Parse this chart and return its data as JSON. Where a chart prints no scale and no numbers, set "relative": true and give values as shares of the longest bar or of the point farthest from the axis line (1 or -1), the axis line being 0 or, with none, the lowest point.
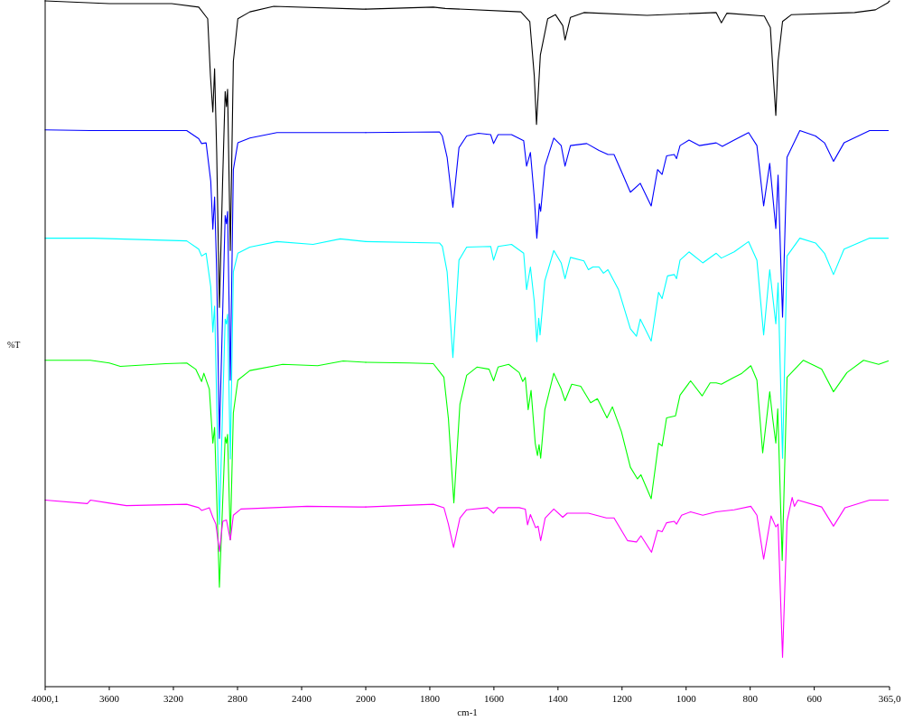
{
  "chart_data": [
    {
      "type": "line",
      "relative": true,
      "ylabel": "%T",
      "tick_labels": "x",
      "xlim": [
        4000.1,
        2000
      ],
      "xticks": [
        {
          "value": 4000.1,
          "label": "4000,1"
        },
        3600,
        3200,
        2800,
        2400,
        2000
      ],
      "series": [
        {
          "color": "#000000",
          "x": [
            4000,
            3600,
            3211,
            3042,
            2986,
            2969,
            2954,
            2943,
            2930,
            2913,
            2893,
            2877,
            2869,
            2862,
            2845,
            2826,
            2798,
            2723,
            2574,
            2019,
            2000
          ],
          "values": [
            1.0,
            0.996,
            0.996,
            0.991,
            0.974,
            0.891,
            0.838,
            0.901,
            0.78,
            0.553,
            0.737,
            0.868,
            0.846,
            0.871,
            0.636,
            0.912,
            0.974,
            0.984,
            0.992,
            0.988,
            0.988
          ]
        },
        {
          "color": "#0000ff",
          "x": [
            4000,
            3718,
            3117,
            3042,
            3024,
            2996,
            2967,
            2954,
            2943,
            2930,
            2913,
            2877,
            2869,
            2862,
            2845,
            2826,
            2798,
            2723,
            2554,
            2000
          ],
          "values": [
            0.812,
            0.811,
            0.811,
            0.799,
            0.792,
            0.793,
            0.737,
            0.667,
            0.714,
            0.605,
            0.362,
            0.687,
            0.675,
            0.693,
            0.447,
            0.754,
            0.793,
            0.8,
            0.808,
            0.808
          ]
        },
        {
          "color": "#00ffff",
          "x": [
            4000,
            3700,
            3117,
            3042,
            3024,
            2996,
            2967,
            2954,
            2943,
            2913,
            2877,
            2869,
            2862,
            2845,
            2826,
            2798,
            2723,
            2554,
            2329,
            2159,
            2000
          ],
          "values": [
            0.654,
            0.654,
            0.65,
            0.638,
            0.628,
            0.632,
            0.583,
            0.517,
            0.555,
            0.237,
            0.536,
            0.529,
            0.543,
            0.332,
            0.605,
            0.632,
            0.641,
            0.649,
            0.645,
            0.653,
            0.649
          ]
        },
        {
          "color": "#00ff00",
          "x": [
            4000,
            3718,
            3600,
            3531,
            3249,
            3117,
            3061,
            3024,
            3010,
            2976,
            2954,
            2943,
            2913,
            2877,
            2869,
            2862,
            2845,
            2826,
            2798,
            2723,
            2518,
            2300,
            2141,
            2000
          ],
          "values": [
            0.476,
            0.476,
            0.472,
            0.467,
            0.471,
            0.472,
            0.463,
            0.445,
            0.457,
            0.434,
            0.355,
            0.378,
            0.145,
            0.364,
            0.355,
            0.368,
            0.214,
            0.399,
            0.447,
            0.461,
            0.47,
            0.468,
            0.475,
            0.473
          ]
        },
        {
          "color": "#ff00ff",
          "x": [
            4000,
            3737,
            3718,
            3606,
            3493,
            3117,
            3042,
            3024,
            2976,
            2954,
            2935,
            2913,
            2892,
            2869,
            2845,
            2826,
            2779,
            2366,
            2047,
            2000
          ],
          "values": [
            0.272,
            0.267,
            0.272,
            0.268,
            0.264,
            0.266,
            0.261,
            0.257,
            0.261,
            0.247,
            0.237,
            0.197,
            0.241,
            0.243,
            0.214,
            0.25,
            0.259,
            0.263,
            0.262,
            0.262
          ]
        }
      ]
    },
    {
      "type": "line",
      "relative": true,
      "xlabel": "cm-1",
      "tick_labels": "x",
      "xlim": [
        2000,
        365.0
      ],
      "xticks": [
        1800,
        1600,
        1400,
        1200,
        1000,
        800,
        600,
        {
          "value": 365.0,
          "label": "365,0"
        }
      ],
      "series": [
        {
          "color": "#000000",
          "x": [
            2000,
            1789,
            1752,
            1516,
            1488,
            1474,
            1467,
            1455,
            1432,
            1408,
            1385,
            1378,
            1361,
            1319,
            1122,
            906,
            890,
            873,
            756,
            737,
            728,
            720,
            713,
            699,
            671,
            474,
            409,
            371,
            365
          ],
          "values": [
            0.988,
            0.991,
            0.989,
            0.984,
            0.97,
            0.891,
            0.82,
            0.921,
            0.974,
            0.98,
            0.964,
            0.943,
            0.976,
            0.983,
            0.979,
            0.983,
            0.968,
            0.982,
            0.978,
            0.961,
            0.891,
            0.833,
            0.912,
            0.97,
            0.98,
            0.983,
            0.987,
            0.997,
            1.0
          ]
        },
        {
          "color": "#0000ff",
          "x": [
            2000,
            1770,
            1761,
            1746,
            1728,
            1709,
            1685,
            1648,
            1610,
            1601,
            1587,
            1545,
            1507,
            1498,
            1486,
            1474,
            1466,
            1458,
            1454,
            1441,
            1413,
            1390,
            1378,
            1361,
            1310,
            1272,
            1244,
            1225,
            1197,
            1174,
            1143,
            1109,
            1089,
            1075,
            1061,
            1037,
            1030,
            1019,
            991,
            958,
            906,
            887,
            850,
            805,
            779,
            758,
            739,
            720,
            713,
            699,
            685,
            645,
            596,
            568,
            540,
            507,
            427,
            369
          ],
          "values": [
            0.808,
            0.809,
            0.803,
            0.772,
            0.699,
            0.786,
            0.803,
            0.807,
            0.805,
            0.792,
            0.805,
            0.805,
            0.796,
            0.759,
            0.779,
            0.714,
            0.654,
            0.704,
            0.693,
            0.759,
            0.8,
            0.789,
            0.759,
            0.789,
            0.792,
            0.782,
            0.776,
            0.776,
            0.746,
            0.721,
            0.734,
            0.701,
            0.754,
            0.747,
            0.774,
            0.776,
            0.77,
            0.789,
            0.797,
            0.789,
            0.793,
            0.788,
            0.797,
            0.808,
            0.789,
            0.701,
            0.763,
            0.668,
            0.746,
            0.539,
            0.772,
            0.811,
            0.803,
            0.793,
            0.766,
            0.793,
            0.811,
            0.811
          ]
        },
        {
          "color": "#00ffff",
          "x": [
            2000,
            1770,
            1761,
            1746,
            1728,
            1709,
            1685,
            1610,
            1601,
            1587,
            1545,
            1507,
            1498,
            1486,
            1474,
            1466,
            1460,
            1456,
            1441,
            1413,
            1390,
            1378,
            1361,
            1319,
            1305,
            1291,
            1272,
            1258,
            1244,
            1211,
            1174,
            1155,
            1143,
            1109,
            1086,
            1075,
            1058,
            1037,
            1030,
            1019,
            991,
            948,
            906,
            890,
            850,
            805,
            779,
            758,
            739,
            720,
            713,
            699,
            685,
            645,
            596,
            568,
            540,
            507,
            427,
            369
          ],
          "values": [
            0.649,
            0.647,
            0.642,
            0.605,
            0.48,
            0.622,
            0.641,
            0.642,
            0.622,
            0.642,
            0.645,
            0.632,
            0.579,
            0.612,
            0.562,
            0.503,
            0.537,
            0.513,
            0.592,
            0.636,
            0.618,
            0.595,
            0.626,
            0.621,
            0.608,
            0.612,
            0.612,
            0.603,
            0.608,
            0.579,
            0.522,
            0.511,
            0.536,
            0.504,
            0.575,
            0.566,
            0.599,
            0.601,
            0.595,
            0.622,
            0.634,
            0.618,
            0.632,
            0.625,
            0.634,
            0.649,
            0.622,
            0.513,
            0.608,
            0.529,
            0.589,
            0.333,
            0.628,
            0.654,
            0.647,
            0.632,
            0.601,
            0.638,
            0.654,
            0.654
          ]
        },
        {
          "color": "#00ff00",
          "x": [
            2000,
            1864,
            1789,
            1756,
            1742,
            1725,
            1706,
            1685,
            1653,
            1615,
            1601,
            1587,
            1554,
            1521,
            1510,
            1502,
            1493,
            1484,
            1471,
            1464,
            1459,
            1454,
            1441,
            1413,
            1390,
            1378,
            1357,
            1329,
            1298,
            1277,
            1247,
            1230,
            1202,
            1174,
            1152,
            1141,
            1109,
            1086,
            1075,
            1061,
            1033,
            1019,
            986,
            950,
            925,
            906,
            890,
            855,
            826,
            798,
            779,
            761,
            739,
            730,
            720,
            714,
            700,
            685,
            634,
            577,
            540,
            498,
            446,
            399,
            369
          ],
          "values": [
            0.473,
            0.472,
            0.471,
            0.451,
            0.391,
            0.268,
            0.412,
            0.454,
            0.466,
            0.463,
            0.446,
            0.466,
            0.47,
            0.458,
            0.445,
            0.451,
            0.404,
            0.432,
            0.355,
            0.337,
            0.353,
            0.333,
            0.404,
            0.457,
            0.434,
            0.417,
            0.441,
            0.438,
            0.414,
            0.42,
            0.392,
            0.408,
            0.372,
            0.32,
            0.303,
            0.309,
            0.274,
            0.355,
            0.351,
            0.392,
            0.395,
            0.425,
            0.446,
            0.424,
            0.443,
            0.443,
            0.441,
            0.45,
            0.457,
            0.468,
            0.447,
            0.341,
            0.43,
            0.392,
            0.355,
            0.405,
            0.184,
            0.451,
            0.476,
            0.463,
            0.43,
            0.458,
            0.476,
            0.47,
            0.475
          ]
        },
        {
          "color": "#ff00ff",
          "x": [
            2000,
            1789,
            1756,
            1742,
            1726,
            1706,
            1685,
            1620,
            1601,
            1587,
            1521,
            1502,
            1495,
            1486,
            1470,
            1462,
            1454,
            1440,
            1413,
            1385,
            1371,
            1305,
            1249,
            1225,
            1183,
            1155,
            1141,
            1108,
            1089,
            1075,
            1061,
            1037,
            1030,
            1014,
            986,
            948,
            906,
            850,
            798,
            779,
            758,
            735,
            720,
            713,
            699,
            685,
            669,
            662,
            651,
            577,
            540,
            504,
            427,
            369
          ],
          "values": [
            0.262,
            0.266,
            0.261,
            0.237,
            0.203,
            0.246,
            0.258,
            0.261,
            0.253,
            0.261,
            0.261,
            0.259,
            0.236,
            0.251,
            0.232,
            0.234,
            0.213,
            0.246,
            0.259,
            0.247,
            0.253,
            0.253,
            0.246,
            0.246,
            0.213,
            0.211,
            0.22,
            0.196,
            0.228,
            0.226,
            0.239,
            0.241,
            0.237,
            0.25,
            0.255,
            0.25,
            0.255,
            0.258,
            0.263,
            0.25,
            0.186,
            0.249,
            0.233,
            0.237,
            0.043,
            0.241,
            0.276,
            0.263,
            0.272,
            0.262,
            0.234,
            0.261,
            0.272,
            0.272
          ]
        }
      ]
    }
  ]
}
